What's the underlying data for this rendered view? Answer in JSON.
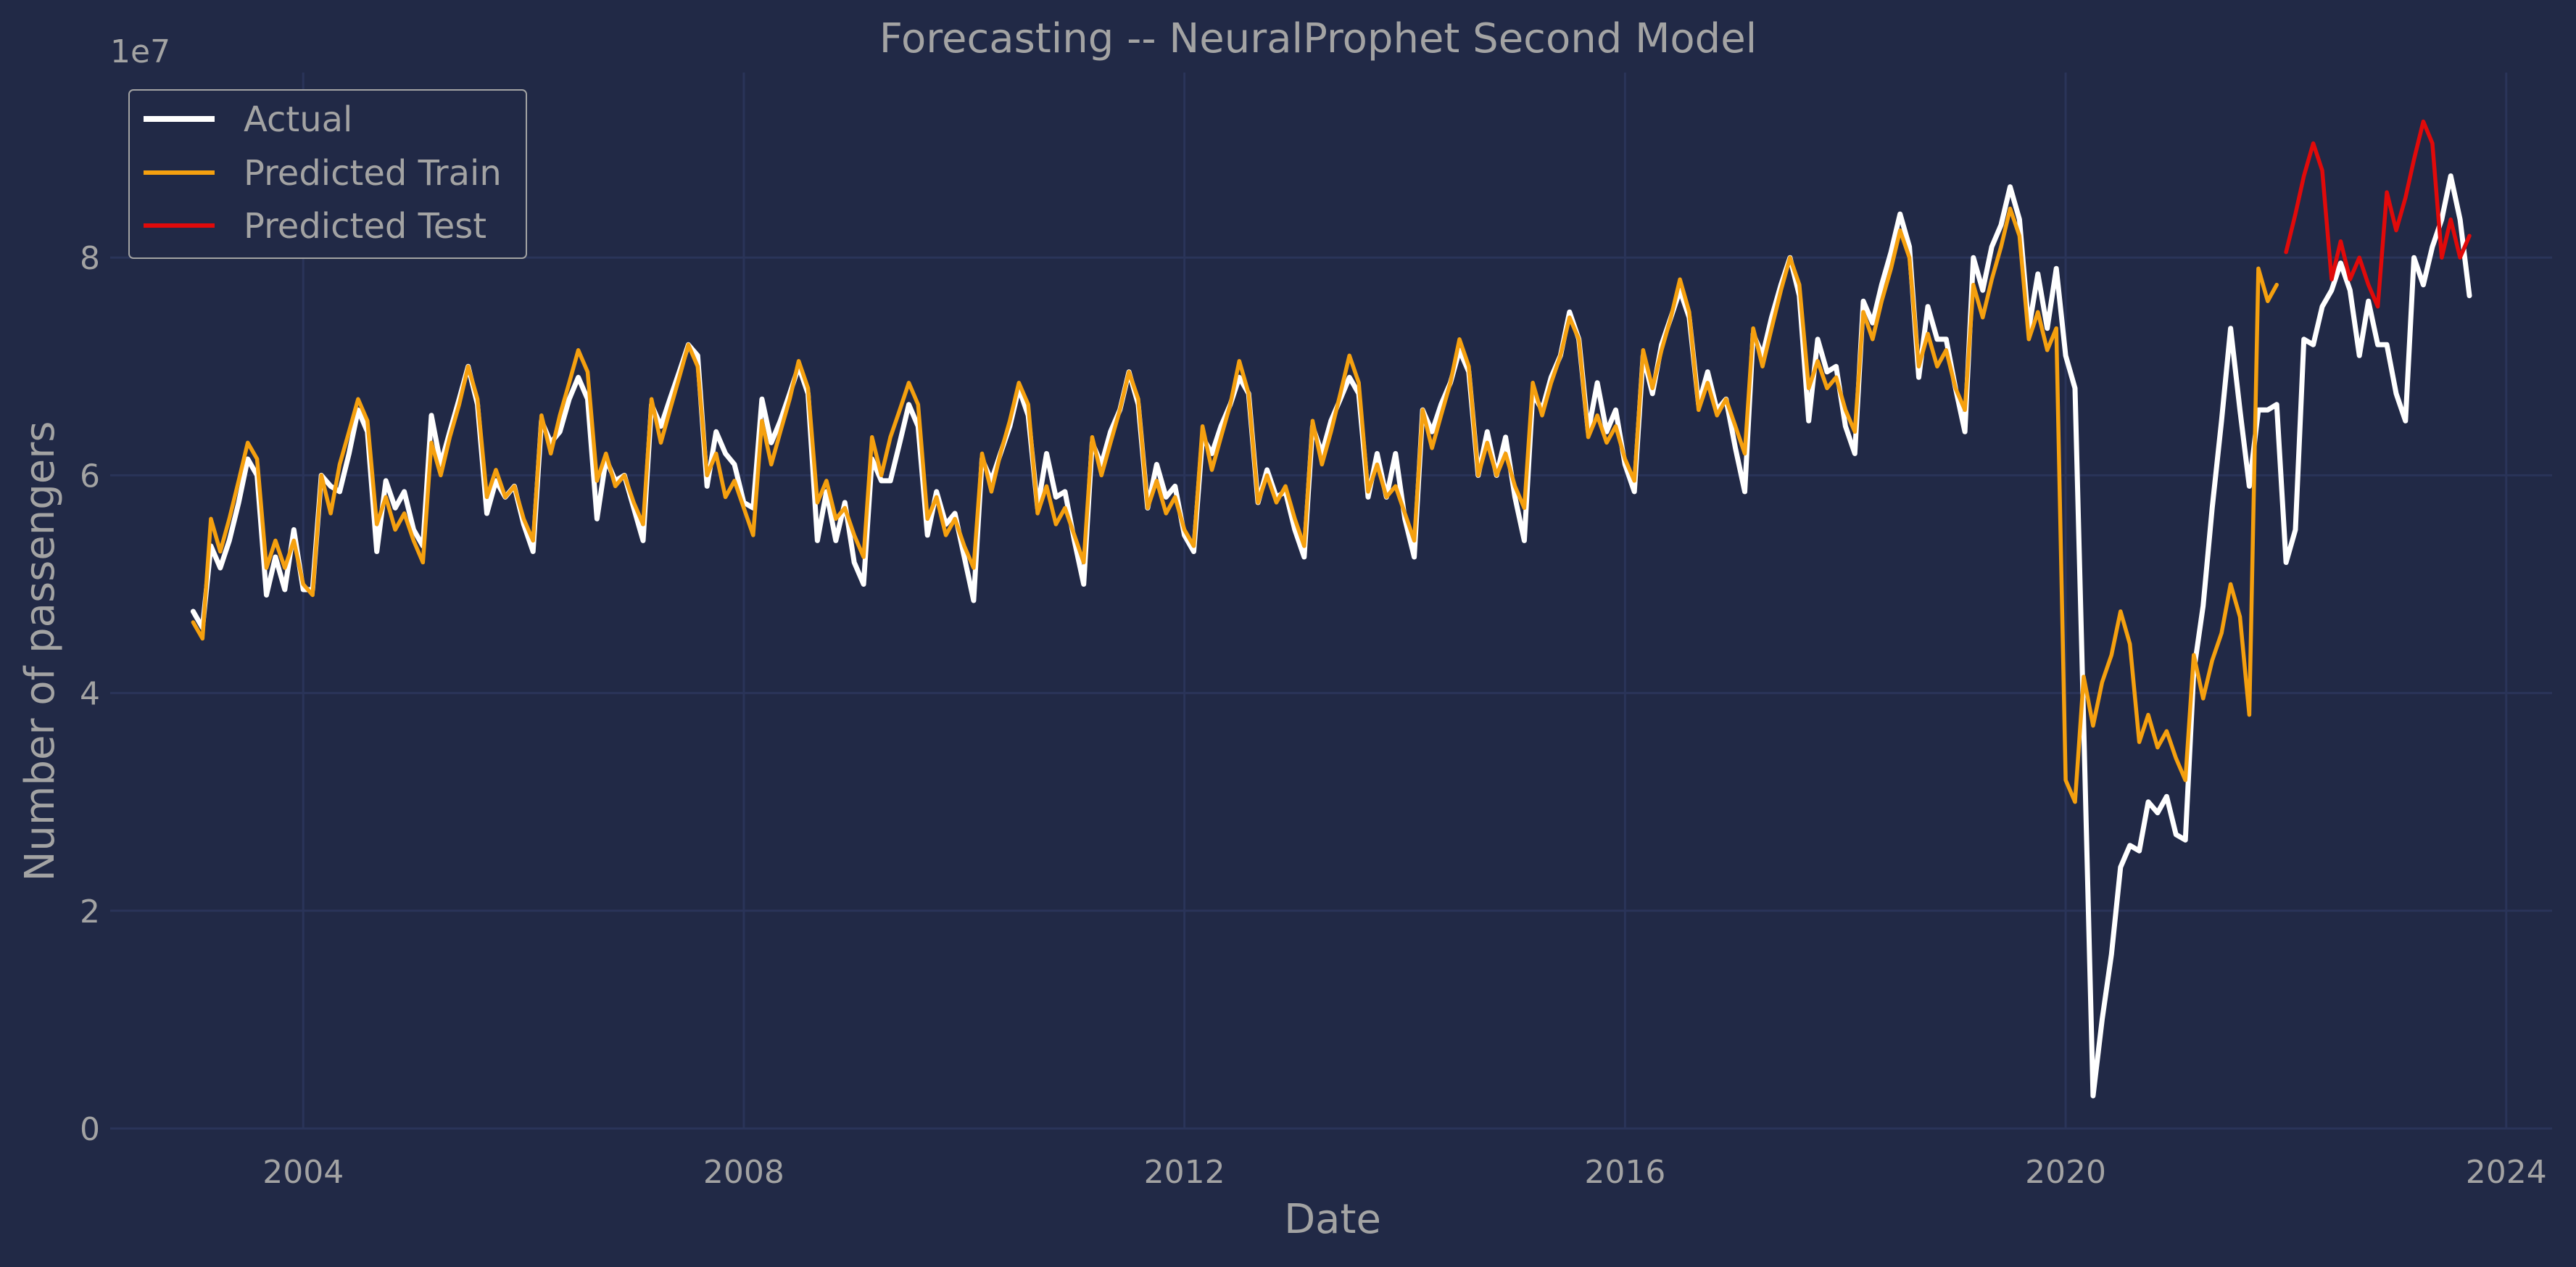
{
  "chart_data": {
    "type": "line",
    "title": "Forecasting -- NeuralProphet Second Model",
    "xlabel": "Date",
    "ylabel": "Number of passengers",
    "y_offset_label": "1e7",
    "y_scale": 10000000,
    "xlim": [
      "2002-04-01",
      "2024-06-01"
    ],
    "ylim": [
      0,
      97000000
    ],
    "x_ticks": [
      {
        "value": "2004-01-01",
        "label": "2004"
      },
      {
        "value": "2008-01-01",
        "label": "2008"
      },
      {
        "value": "2012-01-01",
        "label": "2012"
      },
      {
        "value": "2016-01-01",
        "label": "2016"
      },
      {
        "value": "2020-01-01",
        "label": "2020"
      },
      {
        "value": "2024-01-01",
        "label": "2024"
      }
    ],
    "y_ticks": [
      {
        "value": 0,
        "label": "0"
      },
      {
        "value": 20000000,
        "label": "2"
      },
      {
        "value": 40000000,
        "label": "4"
      },
      {
        "value": 60000000,
        "label": "6"
      },
      {
        "value": 80000000,
        "label": "8"
      }
    ],
    "grid": true,
    "legend_position": "top-left",
    "background_color": "#212946",
    "grid_color": "#2A3459",
    "text_color": "#a3a3a3",
    "series": [
      {
        "name": "Actual",
        "color": "#ffffff",
        "start": "2003-01-01",
        "values": [
          47.5,
          46.0,
          53.5,
          51.5,
          54.0,
          57.5,
          61.5,
          60.0,
          49.0,
          52.5,
          49.5,
          55.0,
          49.5,
          49.5,
          60.0,
          59.0,
          58.5,
          62.0,
          66.0,
          64.0,
          53.0,
          59.5,
          57.0,
          58.5,
          55.0,
          53.5,
          65.5,
          61.0,
          64.0,
          67.0,
          70.0,
          66.5,
          56.5,
          59.5,
          58.0,
          59.0,
          55.5,
          53.0,
          65.0,
          63.0,
          64.0,
          67.0,
          69.0,
          67.0,
          56.0,
          61.5,
          59.5,
          60.0,
          57.0,
          54.0,
          66.5,
          64.5,
          67.0,
          69.5,
          72.0,
          71.0,
          59.0,
          64.0,
          62.0,
          61.0,
          57.5,
          57.0,
          67.0,
          63.0,
          65.0,
          67.5,
          70.0,
          67.5,
          54.0,
          58.5,
          54.0,
          57.5,
          52.0,
          50.0,
          61.5,
          59.5,
          59.5,
          63.0,
          66.5,
          64.5,
          54.5,
          58.5,
          55.5,
          56.5,
          52.5,
          48.5,
          61.5,
          59.5,
          62.0,
          64.5,
          68.0,
          65.5,
          57.0,
          62.0,
          58.0,
          58.5,
          54.0,
          50.0,
          63.0,
          61.0,
          64.0,
          66.0,
          69.5,
          66.5,
          57.0,
          61.0,
          58.0,
          59.0,
          54.5,
          53.0,
          63.5,
          62.0,
          64.5,
          66.5,
          69.0,
          67.5,
          57.5,
          60.5,
          58.0,
          58.5,
          55.0,
          52.5,
          64.5,
          62.0,
          65.0,
          67.0,
          69.0,
          67.5,
          58.0,
          62.0,
          58.0,
          62.0,
          56.0,
          52.5,
          66.0,
          64.0,
          66.5,
          68.5,
          71.5,
          69.5,
          60.0,
          64.0,
          60.0,
          63.5,
          58.0,
          54.0,
          67.5,
          66.0,
          69.0,
          71.0,
          75.0,
          72.5,
          64.0,
          68.5,
          64.0,
          66.0,
          61.0,
          58.5,
          71.0,
          67.5,
          72.0,
          74.5,
          77.0,
          74.5,
          66.5,
          69.5,
          66.0,
          67.0,
          62.5,
          58.5,
          73.0,
          71.0,
          74.5,
          77.5,
          80.0,
          76.5,
          65.0,
          72.5,
          69.5,
          70.0,
          64.5,
          62.0,
          76.0,
          74.0,
          77.5,
          80.5,
          84.0,
          81.0,
          69.0,
          75.5,
          72.5,
          72.5,
          68.0,
          64.0,
          80.0,
          77.0,
          81.0,
          83.0,
          86.5,
          83.5,
          73.5,
          78.5,
          73.5,
          79.0,
          71.0,
          68.0,
          37.0,
          3.0,
          10.0,
          16.0,
          24.0,
          26.0,
          25.5,
          30.0,
          29.0,
          30.5,
          27.0,
          26.5,
          42.0,
          48.0,
          57.0,
          65.0,
          73.5,
          66.0,
          59.0,
          66.0,
          66.0,
          66.5,
          52.0,
          55.0,
          72.5,
          72.0,
          75.5,
          77.0,
          79.5,
          77.0,
          71.0,
          76.0,
          72.0,
          72.0,
          67.5,
          65.0,
          80.0,
          77.5,
          81.0,
          83.5,
          87.5,
          83.5,
          76.5
        ]
      },
      {
        "name": "Predicted Train",
        "color": "#F5A00F",
        "start": "2003-01-01",
        "values": [
          46.5,
          45.0,
          56.0,
          53.0,
          56.0,
          59.5,
          63.0,
          61.5,
          51.5,
          54.0,
          51.5,
          54.0,
          50.0,
          49.0,
          60.0,
          56.5,
          61.0,
          64.0,
          67.0,
          65.0,
          55.5,
          58.0,
          55.0,
          56.5,
          54.0,
          52.0,
          63.0,
          60.0,
          63.5,
          66.5,
          70.0,
          67.0,
          58.0,
          60.5,
          58.0,
          59.0,
          56.0,
          54.0,
          65.5,
          62.0,
          65.5,
          68.5,
          71.5,
          69.5,
          59.5,
          62.0,
          59.0,
          60.0,
          57.5,
          55.5,
          67.0,
          63.0,
          66.0,
          69.0,
          72.0,
          70.0,
          60.0,
          62.0,
          58.0,
          59.5,
          57.0,
          54.5,
          65.0,
          61.0,
          64.0,
          67.0,
          70.5,
          68.0,
          57.5,
          59.5,
          56.0,
          57.0,
          54.5,
          52.5,
          63.5,
          60.0,
          63.5,
          66.0,
          68.5,
          66.5,
          56.0,
          58.0,
          54.5,
          56.0,
          53.5,
          51.5,
          62.0,
          58.5,
          62.0,
          65.0,
          68.5,
          66.5,
          56.5,
          59.0,
          55.5,
          57.0,
          54.5,
          52.0,
          63.5,
          60.0,
          63.0,
          66.0,
          69.5,
          67.0,
          57.0,
          59.5,
          56.5,
          58.0,
          55.0,
          53.5,
          64.5,
          60.5,
          63.5,
          66.5,
          70.5,
          67.5,
          57.5,
          60.0,
          57.5,
          59.0,
          56.0,
          53.5,
          65.0,
          61.0,
          64.0,
          67.5,
          71.0,
          68.5,
          58.5,
          61.0,
          58.0,
          59.0,
          56.5,
          54.0,
          66.0,
          62.5,
          65.5,
          68.5,
          72.5,
          70.0,
          60.0,
          63.0,
          60.0,
          62.0,
          59.0,
          57.0,
          68.5,
          65.5,
          68.5,
          71.0,
          74.5,
          72.5,
          63.5,
          65.5,
          63.0,
          64.5,
          61.5,
          59.5,
          71.5,
          68.0,
          71.5,
          74.5,
          78.0,
          75.0,
          66.0,
          68.5,
          65.5,
          67.0,
          64.5,
          62.0,
          73.5,
          70.0,
          73.5,
          77.0,
          80.0,
          77.5,
          68.0,
          70.5,
          68.0,
          69.0,
          66.0,
          64.0,
          75.0,
          72.5,
          76.0,
          79.0,
          82.5,
          80.0,
          70.0,
          73.0,
          70.0,
          71.5,
          68.0,
          66.0,
          77.5,
          74.5,
          78.0,
          81.0,
          84.5,
          82.0,
          72.5,
          75.0,
          71.5,
          73.5,
          32.0,
          30.0,
          41.5,
          37.0,
          41.0,
          43.5,
          47.5,
          44.5,
          35.5,
          38.0,
          35.0,
          36.5,
          34.0,
          32.0,
          43.5,
          39.5,
          43.0,
          45.5,
          50.0,
          47.0,
          38.0,
          79.0,
          76.0,
          77.5
        ]
      },
      {
        "name": "Predicted Test",
        "color": "#E00A0A",
        "start": "2022-01-01",
        "values": [
          80.5,
          84.0,
          87.5,
          90.5,
          88.0,
          78.0,
          81.5,
          78.0,
          80.0,
          77.5,
          75.5,
          86.0,
          82.5,
          85.5,
          89.0,
          92.5,
          90.5,
          80.0,
          83.5,
          80.0,
          82.0
        ]
      }
    ]
  }
}
